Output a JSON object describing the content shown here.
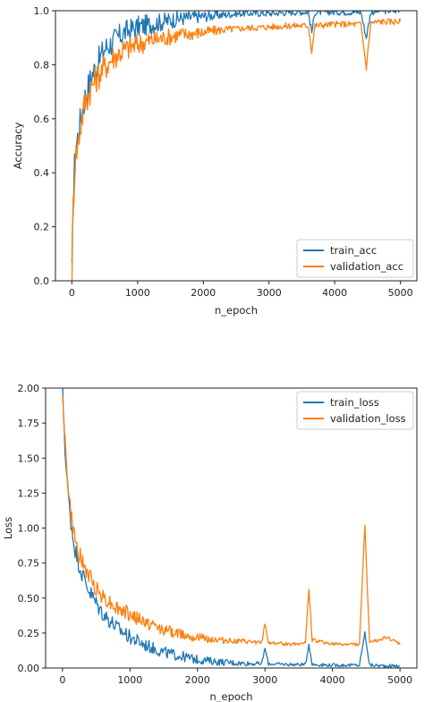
{
  "chart_data": [
    {
      "type": "line",
      "xlabel": "n_epoch",
      "ylabel": "Accuracy",
      "xlim": [
        -250,
        5250
      ],
      "ylim": [
        0.0,
        1.0
      ],
      "xticks": [
        0,
        1000,
        2000,
        3000,
        4000,
        5000
      ],
      "yticks": [
        0.0,
        0.2,
        0.4,
        0.6,
        0.8,
        1.0
      ],
      "xtick_labels": [
        "0",
        "1000",
        "2000",
        "3000",
        "4000",
        "5000"
      ],
      "ytick_labels": [
        "0.0",
        "0.2",
        "0.4",
        "0.6",
        "0.8",
        "1.0"
      ],
      "legend_position": "lower-right",
      "grid": false,
      "series": [
        {
          "name": "train_acc",
          "color": "#1f77b4",
          "x": [
            0,
            20,
            50,
            100,
            150,
            200,
            300,
            400,
            500,
            600,
            700,
            800,
            900,
            1000,
            1200,
            1400,
            1600,
            1800,
            2000,
            2300,
            2600,
            3000,
            3400,
            3600,
            3650,
            3700,
            4000,
            4400,
            4480,
            4550,
            4700,
            5000
          ],
          "y": [
            0.02,
            0.3,
            0.48,
            0.55,
            0.62,
            0.68,
            0.76,
            0.81,
            0.86,
            0.88,
            0.9,
            0.92,
            0.93,
            0.94,
            0.95,
            0.96,
            0.97,
            0.975,
            0.98,
            0.985,
            0.99,
            0.99,
            0.995,
            0.995,
            0.92,
            0.995,
            0.995,
            0.995,
            0.9,
            0.995,
            1.0,
            1.0
          ]
        },
        {
          "name": "validation_acc",
          "color": "#ff7f0e",
          "x": [
            0,
            20,
            50,
            100,
            150,
            200,
            300,
            400,
            500,
            600,
            700,
            800,
            900,
            1000,
            1200,
            1400,
            1600,
            1800,
            2000,
            2300,
            2600,
            3000,
            3400,
            3600,
            3650,
            3700,
            4000,
            4400,
            4480,
            4550,
            4700,
            5000
          ],
          "y": [
            0.02,
            0.28,
            0.45,
            0.52,
            0.6,
            0.66,
            0.72,
            0.76,
            0.79,
            0.82,
            0.84,
            0.855,
            0.865,
            0.875,
            0.89,
            0.9,
            0.91,
            0.915,
            0.92,
            0.93,
            0.935,
            0.94,
            0.945,
            0.945,
            0.85,
            0.945,
            0.95,
            0.95,
            0.79,
            0.955,
            0.96,
            0.96
          ]
        }
      ]
    },
    {
      "type": "line",
      "xlabel": "n_epoch",
      "ylabel": "Loss",
      "xlim": [
        -250,
        5250
      ],
      "ylim": [
        0.0,
        2.0
      ],
      "xticks": [
        0,
        1000,
        2000,
        3000,
        4000,
        5000
      ],
      "yticks": [
        0.0,
        0.25,
        0.5,
        0.75,
        1.0,
        1.25,
        1.5,
        1.75,
        2.0
      ],
      "xtick_labels": [
        "0",
        "1000",
        "2000",
        "3000",
        "4000",
        "5000"
      ],
      "ytick_labels": [
        "0.00",
        "0.25",
        "0.50",
        "0.75",
        "1.00",
        "1.25",
        "1.50",
        "1.75",
        "2.00"
      ],
      "legend_position": "upper-right",
      "grid": false,
      "series": [
        {
          "name": "train_loss",
          "color": "#1f77b4",
          "x": [
            0,
            50,
            100,
            150,
            200,
            300,
            400,
            500,
            600,
            700,
            800,
            1000,
            1200,
            1400,
            1600,
            1800,
            2000,
            2300,
            2600,
            2950,
            3000,
            3050,
            3400,
            3600,
            3650,
            3700,
            4000,
            4400,
            4480,
            4550,
            4800,
            5000
          ],
          "y": [
            2.0,
            1.45,
            1.15,
            0.95,
            0.82,
            0.66,
            0.55,
            0.46,
            0.39,
            0.34,
            0.29,
            0.22,
            0.17,
            0.13,
            0.1,
            0.08,
            0.06,
            0.045,
            0.035,
            0.03,
            0.14,
            0.03,
            0.025,
            0.025,
            0.17,
            0.025,
            0.02,
            0.02,
            0.25,
            0.02,
            0.015,
            0.015
          ]
        },
        {
          "name": "validation_loss",
          "color": "#ff7f0e",
          "x": [
            0,
            50,
            100,
            150,
            200,
            300,
            400,
            500,
            600,
            700,
            800,
            1000,
            1200,
            1400,
            1600,
            1800,
            2000,
            2300,
            2600,
            2950,
            3000,
            3050,
            3400,
            3600,
            3650,
            3700,
            4000,
            4400,
            4480,
            4550,
            4800,
            5000
          ],
          "y": [
            2.0,
            1.5,
            1.2,
            1.0,
            0.88,
            0.74,
            0.65,
            0.57,
            0.51,
            0.47,
            0.43,
            0.38,
            0.33,
            0.29,
            0.26,
            0.24,
            0.22,
            0.2,
            0.19,
            0.18,
            0.32,
            0.18,
            0.17,
            0.18,
            0.57,
            0.2,
            0.17,
            0.17,
            1.02,
            0.18,
            0.22,
            0.17
          ]
        }
      ]
    }
  ]
}
